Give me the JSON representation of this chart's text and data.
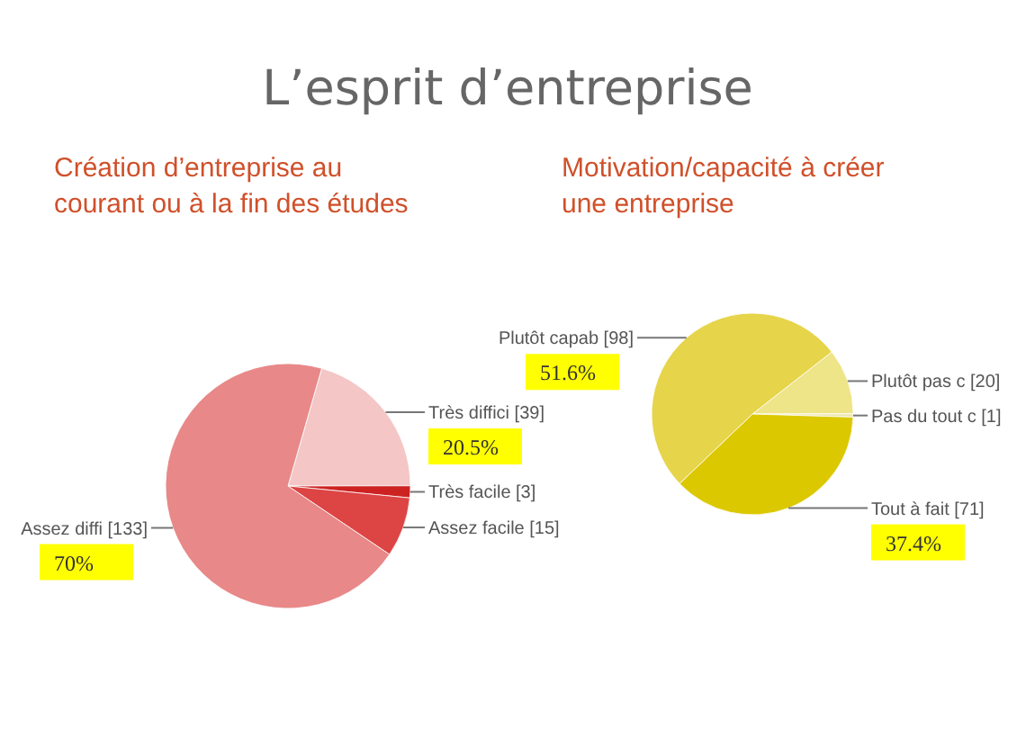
{
  "chart_data": [
    {
      "type": "pie",
      "title": "L’esprit d’entreprise",
      "subtitle": "Création d’entreprise au courant ou à la fin des études",
      "categories": [
        "Très diffici",
        "Très facile",
        "Assez facile",
        "Assez diffi"
      ],
      "values": [
        39,
        3,
        15,
        133
      ],
      "colors": [
        "#f4c6c6",
        "#cc2222",
        "#dd4444",
        "#e88888"
      ],
      "value_labels": [
        "[39]",
        "[3]",
        "[15]",
        "[133]"
      ],
      "annotations": [
        {
          "text": "20.5%",
          "x": "Très diffici"
        },
        {
          "text": "70%",
          "x": "Assez diffi"
        }
      ]
    },
    {
      "type": "pie",
      "subtitle": "Motivation/capacité à créer une entreprise",
      "categories": [
        "Plutôt pas c",
        "Pas du tout c",
        "Tout à fait",
        "Plutôt capab"
      ],
      "values": [
        20,
        1,
        71,
        98
      ],
      "colors": [
        "#eee488",
        "#ece6b0",
        "#dcc800",
        "#e6d44a"
      ],
      "value_labels": [
        "[20]",
        "[1]",
        "[71]",
        "[98]"
      ],
      "annotations": [
        {
          "text": "37.4%",
          "x": "Tout à fait"
        },
        {
          "text": "51.6%",
          "x": "Plutôt capab"
        }
      ]
    }
  ]
}
